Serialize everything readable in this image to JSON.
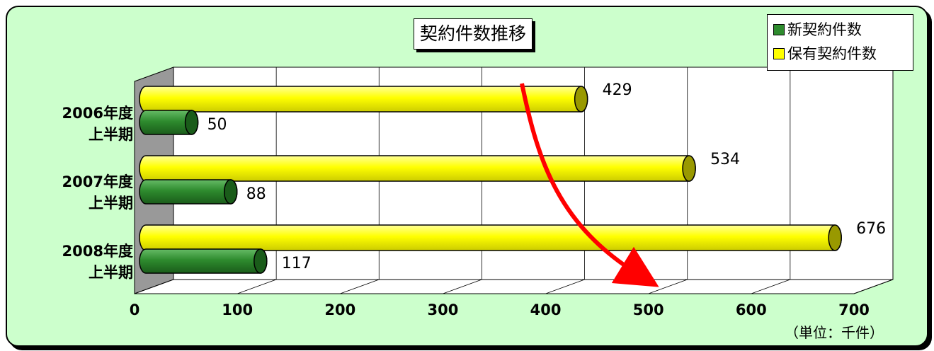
{
  "chart_data": {
    "type": "bar",
    "orientation": "horizontal",
    "title": "契約件数推移",
    "unit_label": "（単位：千件）",
    "categories": [
      {
        "line1": "2006年度",
        "line2": "上半期"
      },
      {
        "line1": "2007年度",
        "line2": "上半期"
      },
      {
        "line1": "2008年度",
        "line2": "上半期"
      }
    ],
    "series": [
      {
        "name": "新契約件数",
        "color": "#2e8b2e",
        "values": [
          50,
          88,
          117
        ]
      },
      {
        "name": "保有契約件数",
        "color": "#ffff00",
        "values": [
          429,
          534,
          676
        ]
      }
    ],
    "xlim": [
      0,
      700
    ],
    "x_ticks": [
      "0",
      "100",
      "200",
      "300",
      "400",
      "500",
      "600",
      "700"
    ],
    "grid": true,
    "legend_position": "top-right",
    "annotations": [
      {
        "type": "arrow",
        "color": "#ff0000"
      }
    ]
  }
}
